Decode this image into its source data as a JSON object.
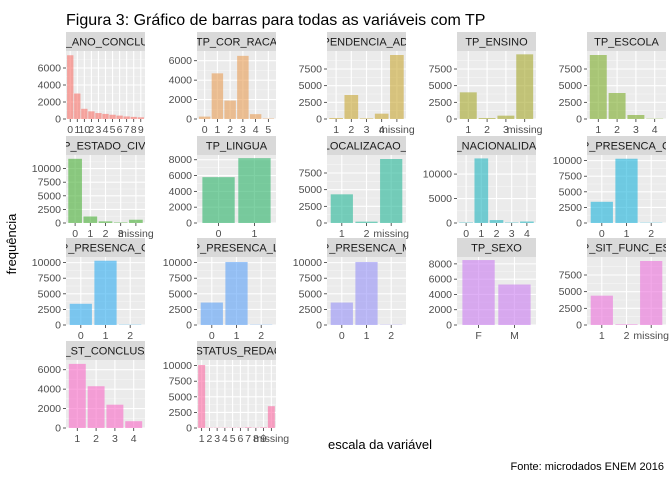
{
  "figure": {
    "title": "Figura 3: Gráfico de barras para todas as variáveis com TP",
    "xlabel": "escala da variável",
    "ylabel": "frequência",
    "caption": "Fonte: microdados ENEM 2016"
  },
  "chart_data": [
    {
      "type": "bar",
      "title": "TP_ANO_CONCLUIU",
      "color": "#F8766D",
      "categories": [
        "0",
        "1",
        "2",
        "3",
        "4",
        "5",
        "6",
        "7",
        "8",
        "9",
        "10"
      ],
      "tick_labels": [
        "0",
        "1",
        "10",
        "2",
        "3",
        "4",
        "5",
        "6",
        "7",
        "8",
        "9"
      ],
      "values": [
        7500,
        3000,
        1200,
        900,
        700,
        600,
        500,
        400,
        300,
        250,
        200
      ],
      "yticks": [
        0,
        2000,
        4000,
        6000
      ],
      "ylim": [
        0,
        8000
      ]
    },
    {
      "type": "bar",
      "title": "TP_COR_RACA",
      "color": "#E9A05A",
      "categories": [
        "0",
        "1",
        "2",
        "3",
        "4",
        "5"
      ],
      "values": [
        250,
        4700,
        1900,
        6500,
        500,
        50
      ],
      "yticks": [
        0,
        2000,
        4000,
        6000
      ],
      "ylim": [
        0,
        7000
      ]
    },
    {
      "type": "bar",
      "title": "TP_DEPENDENCIA_ADM_ESC",
      "color": "#C9A93A",
      "categories": [
        "1",
        "2",
        "3",
        "4",
        "missing"
      ],
      "values": [
        150,
        3600,
        100,
        800,
        9600
      ],
      "yticks": [
        0,
        2500,
        5000,
        7500
      ],
      "ylim": [
        0,
        10200
      ]
    },
    {
      "type": "bar",
      "title": "TP_ENSINO",
      "color": "#A8AA30",
      "categories": [
        "1",
        "2",
        "3",
        "missing"
      ],
      "values": [
        4000,
        150,
        500,
        9700
      ],
      "yticks": [
        0,
        2500,
        5000,
        7500
      ],
      "ylim": [
        0,
        10200
      ]
    },
    {
      "type": "bar",
      "title": "TP_ESCOLA",
      "color": "#80AE2E",
      "categories": [
        "1",
        "2",
        "3",
        "4"
      ],
      "values": [
        9600,
        3900,
        600,
        50
      ],
      "yticks": [
        0,
        2500,
        5000,
        7500
      ],
      "ylim": [
        0,
        10200
      ]
    },
    {
      "type": "bar",
      "title": "TP_ESTADO_CIVIL",
      "color": "#4EB13C",
      "categories": [
        "0",
        "1",
        "2",
        "3",
        "missing"
      ],
      "values": [
        11800,
        1200,
        300,
        100,
        600
      ],
      "yticks": [
        0,
        2500,
        5000,
        7500,
        10000
      ],
      "ylim": [
        0,
        12500
      ]
    },
    {
      "type": "bar",
      "title": "TP_LINGUA",
      "color": "#30B56C",
      "categories": [
        "0",
        "1"
      ],
      "values": [
        5800,
        8200
      ],
      "yticks": [
        0,
        2000,
        4000,
        6000,
        8000
      ],
      "ylim": [
        0,
        8600
      ]
    },
    {
      "type": "bar",
      "title": "TP_LOCALIZACAO_ESC",
      "color": "#2AB89A",
      "categories": [
        "1",
        "2",
        "missing"
      ],
      "values": [
        4300,
        200,
        9600
      ],
      "yticks": [
        0,
        2500,
        5000,
        7500
      ],
      "ylim": [
        0,
        10200
      ]
    },
    {
      "type": "bar",
      "title": "TP_NACIONALIDADE",
      "color": "#26B7C0",
      "categories": [
        "0",
        "1",
        "2",
        "3",
        "4"
      ],
      "values": [
        100,
        13200,
        600,
        100,
        300
      ],
      "yticks": [
        0,
        5000,
        10000
      ],
      "ylim": [
        0,
        13900
      ]
    },
    {
      "type": "bar",
      "title": "TP_PRESENCA_CH",
      "color": "#22B5DC",
      "categories": [
        "0",
        "1",
        "2"
      ],
      "values": [
        3400,
        10300,
        50
      ],
      "yticks": [
        0,
        2500,
        5000,
        7500,
        10000
      ],
      "ylim": [
        0,
        10900
      ]
    },
    {
      "type": "bar",
      "title": "TP_PRESENCA_CN",
      "color": "#35AEF0",
      "categories": [
        "0",
        "1",
        "2"
      ],
      "values": [
        3400,
        10300,
        50
      ],
      "yticks": [
        0,
        2500,
        5000,
        7500,
        10000
      ],
      "ylim": [
        0,
        10900
      ]
    },
    {
      "type": "bar",
      "title": "TP_PRESENCA_LC",
      "color": "#60A3F7",
      "categories": [
        "0",
        "1",
        "2"
      ],
      "values": [
        3600,
        10100,
        50
      ],
      "yticks": [
        0,
        2500,
        5000,
        7500,
        10000
      ],
      "ylim": [
        0,
        10900
      ]
    },
    {
      "type": "bar",
      "title": "TP_PRESENCA_MT",
      "color": "#9A94F7",
      "categories": [
        "0",
        "1",
        "2"
      ],
      "values": [
        3600,
        10100,
        50
      ],
      "yticks": [
        0,
        2500,
        5000,
        7500,
        10000
      ],
      "ylim": [
        0,
        10900
      ]
    },
    {
      "type": "bar",
      "title": "TP_SEXO",
      "color": "#CC80F0",
      "categories": [
        "F",
        "M"
      ],
      "values": [
        8500,
        5300
      ],
      "yticks": [
        0,
        2000,
        4000,
        6000,
        8000
      ],
      "ylim": [
        0,
        8900
      ]
    },
    {
      "type": "bar",
      "title": "TP_SIT_FUNC_ESC",
      "color": "#EC74DC",
      "categories": [
        "1",
        "2",
        "missing"
      ],
      "values": [
        4400,
        100,
        9600
      ],
      "yticks": [
        0,
        2500,
        5000,
        7500
      ],
      "ylim": [
        0,
        10200
      ]
    },
    {
      "type": "bar",
      "title": "TP_ST_CONCLUSAO",
      "color": "#F86DC8",
      "categories": [
        "1",
        "2",
        "3",
        "4"
      ],
      "values": [
        6600,
        4300,
        2400,
        700
      ],
      "yticks": [
        0,
        2000,
        4000,
        6000
      ],
      "ylim": [
        0,
        7000
      ]
    },
    {
      "type": "bar",
      "title": "TP_STATUS_REDACAO",
      "color": "#FA6EA4",
      "categories": [
        "1",
        "2",
        "3",
        "4",
        "5",
        "6",
        "7",
        "8",
        "9",
        "missing"
      ],
      "tick_labels": [
        "1",
        "2",
        "3",
        "4",
        "5",
        "6",
        "7",
        "8",
        "9",
        "missing"
      ],
      "values": [
        10100,
        50,
        50,
        50,
        50,
        50,
        100,
        50,
        100,
        3500
      ],
      "yticks": [
        0,
        2500,
        5000,
        7500,
        10000
      ],
      "ylim": [
        0,
        10900
      ]
    }
  ]
}
